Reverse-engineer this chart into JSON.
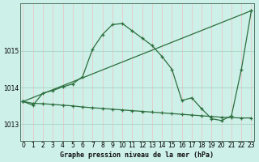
{
  "title": "Graphe pression niveau de la mer (hPa)",
  "bg_color": "#cdf0e8",
  "grid_color_v": "#e8c8c8",
  "grid_color_h": "#a8d4c0",
  "line_color": "#2d6e3e",
  "ylim": [
    1012.55,
    1016.3
  ],
  "yticks": [
    1013,
    1014,
    1015
  ],
  "xlim": [
    -0.3,
    23.3
  ],
  "xticks": [
    0,
    1,
    2,
    3,
    4,
    5,
    6,
    7,
    8,
    9,
    10,
    11,
    12,
    13,
    14,
    15,
    16,
    17,
    18,
    19,
    20,
    21,
    22,
    23
  ],
  "line_peak": {
    "x": [
      0,
      1,
      2,
      3,
      4,
      5,
      6,
      7,
      8,
      9,
      10,
      11,
      12,
      13,
      14,
      15,
      16,
      17,
      18,
      19,
      20,
      21,
      22,
      23
    ],
    "y": [
      1013.62,
      1013.52,
      1013.85,
      1013.92,
      1014.02,
      1014.1,
      1014.3,
      1015.05,
      1015.45,
      1015.72,
      1015.75,
      1015.55,
      1015.35,
      1015.15,
      1014.85,
      1014.5,
      1013.65,
      1013.72,
      1013.42,
      1013.15,
      1013.1,
      1013.23,
      1014.5,
      1016.1
    ]
  },
  "line_diag": {
    "x": [
      0,
      23
    ],
    "y": [
      1013.62,
      1016.1
    ]
  },
  "line_flat": {
    "x": [
      0,
      1,
      2,
      3,
      4,
      5,
      6,
      7,
      8,
      9,
      10,
      11,
      12,
      13,
      14,
      15,
      16,
      17,
      18,
      19,
      20,
      21,
      22,
      23
    ],
    "y": [
      1013.62,
      1013.57,
      1013.56,
      1013.54,
      1013.52,
      1013.5,
      1013.47,
      1013.45,
      1013.43,
      1013.41,
      1013.39,
      1013.37,
      1013.35,
      1013.33,
      1013.31,
      1013.29,
      1013.27,
      1013.25,
      1013.23,
      1013.21,
      1013.19,
      1013.18,
      1013.17,
      1013.17
    ]
  }
}
